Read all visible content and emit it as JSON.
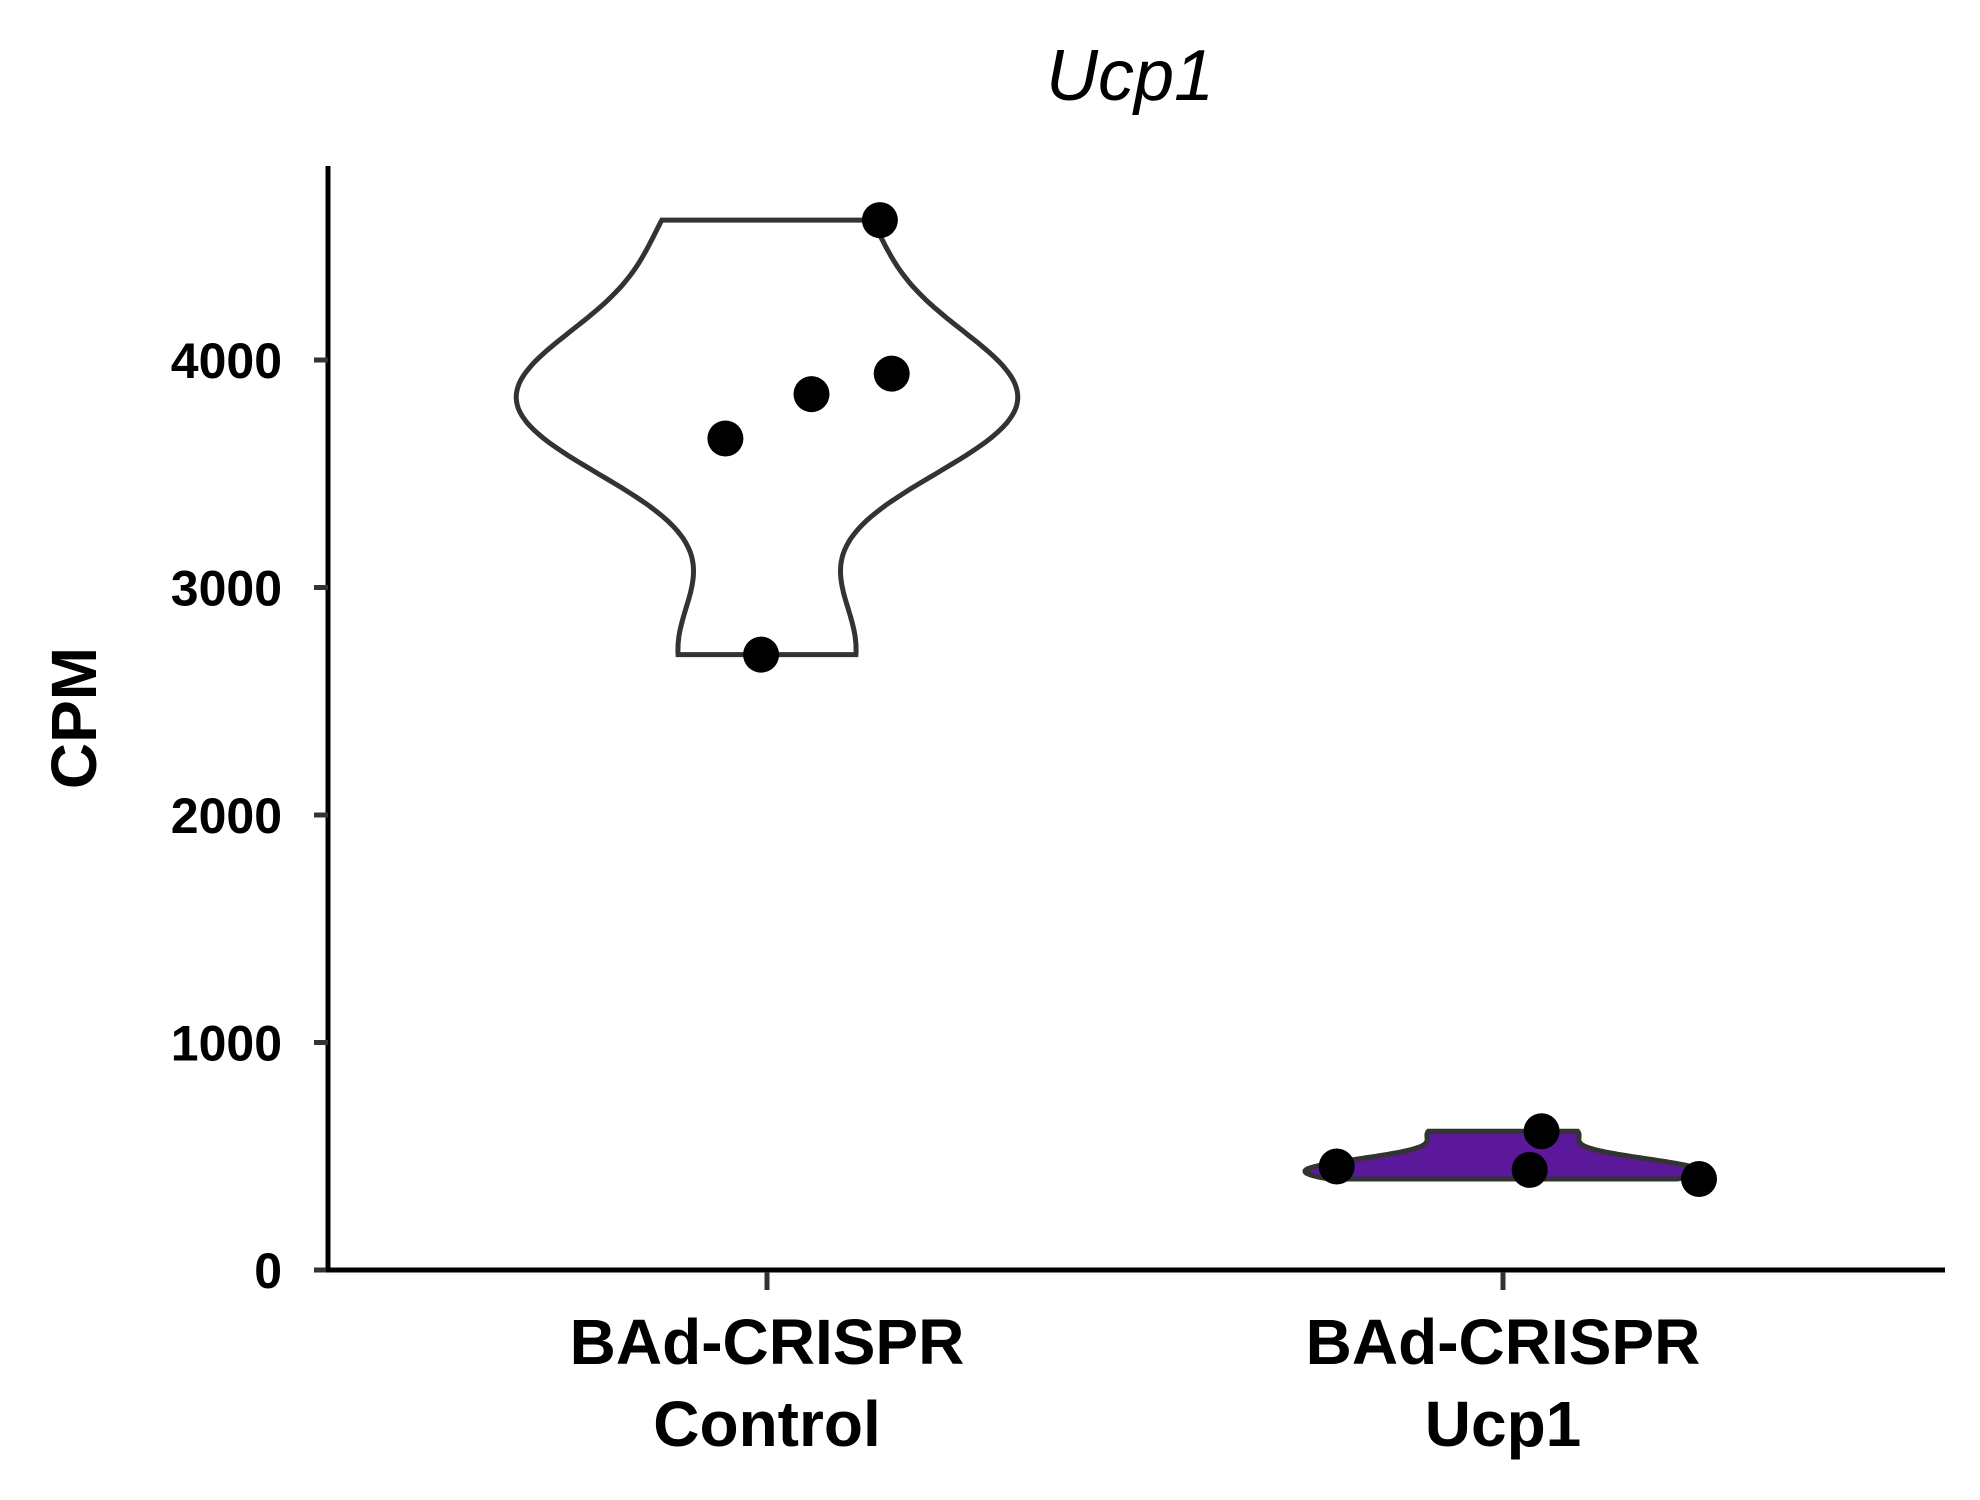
{
  "chart_data": {
    "type": "violin",
    "title": "Ucp1",
    "xlabel": "",
    "ylabel": "CPM",
    "ylim": [
      0,
      4850
    ],
    "yticks": [
      0,
      1000,
      2000,
      3000,
      4000
    ],
    "ytick_labels": [
      "0",
      "1000",
      "2000",
      "3000",
      "4000"
    ],
    "grid": false,
    "legend": "none",
    "groups": [
      {
        "label_lines": [
          "BAd-CRISPR",
          "Control"
        ],
        "fill": "#ffffff",
        "points": [
          4615,
          3940,
          3850,
          3655,
          2705
        ]
      },
      {
        "label_lines": [
          "BAd-CRISPR",
          "Ucp1"
        ],
        "fill": "#5b189b",
        "points": [
          610,
          455,
          440,
          400
        ]
      }
    ]
  }
}
